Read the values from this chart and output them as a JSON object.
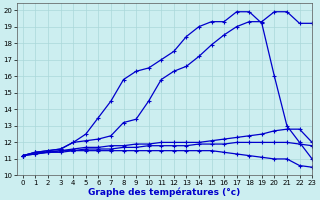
{
  "title": "Graphe des températures (°c)",
  "bg_color": "#cceef0",
  "grid_color": "#aad8da",
  "line_color": "#0000cc",
  "xlim": [
    -0.5,
    23
  ],
  "ylim": [
    10,
    20.4
  ],
  "xticks": [
    0,
    1,
    2,
    3,
    4,
    5,
    6,
    7,
    8,
    9,
    10,
    11,
    12,
    13,
    14,
    15,
    16,
    17,
    18,
    19,
    20,
    21,
    22,
    23
  ],
  "yticks": [
    10,
    11,
    12,
    13,
    14,
    15,
    16,
    17,
    18,
    19,
    20
  ],
  "curve1": [
    11.2,
    11.4,
    11.5,
    11.6,
    12.0,
    12.1,
    12.2,
    12.4,
    13.2,
    13.4,
    14.5,
    15.8,
    16.3,
    16.6,
    17.2,
    17.9,
    18.5,
    19.0,
    19.3,
    19.3,
    19.9,
    19.9,
    19.2,
    19.2
  ],
  "curve2": [
    11.2,
    11.4,
    11.5,
    11.6,
    12.0,
    12.5,
    13.5,
    14.5,
    15.8,
    16.3,
    16.5,
    17.0,
    17.5,
    18.4,
    19.0,
    19.3,
    19.3,
    19.9,
    19.9,
    19.2,
    16.0,
    13.0,
    12.0,
    11.0
  ],
  "curve3": [
    11.2,
    11.4,
    11.4,
    11.5,
    11.6,
    11.7,
    11.7,
    11.8,
    11.8,
    11.9,
    11.9,
    12.0,
    12.0,
    12.0,
    12.0,
    12.1,
    12.2,
    12.3,
    12.4,
    12.5,
    12.7,
    12.8,
    12.8,
    12.0
  ],
  "curve4": [
    11.2,
    11.3,
    11.4,
    11.5,
    11.5,
    11.6,
    11.6,
    11.6,
    11.7,
    11.7,
    11.8,
    11.8,
    11.8,
    11.8,
    11.9,
    11.9,
    11.9,
    12.0,
    12.0,
    12.0,
    12.0,
    12.0,
    11.9,
    11.8
  ],
  "curve5": [
    11.2,
    11.3,
    11.4,
    11.4,
    11.5,
    11.5,
    11.5,
    11.5,
    11.5,
    11.5,
    11.5,
    11.5,
    11.5,
    11.5,
    11.5,
    11.5,
    11.4,
    11.3,
    11.2,
    11.1,
    11.0,
    11.0,
    10.6,
    10.5
  ]
}
